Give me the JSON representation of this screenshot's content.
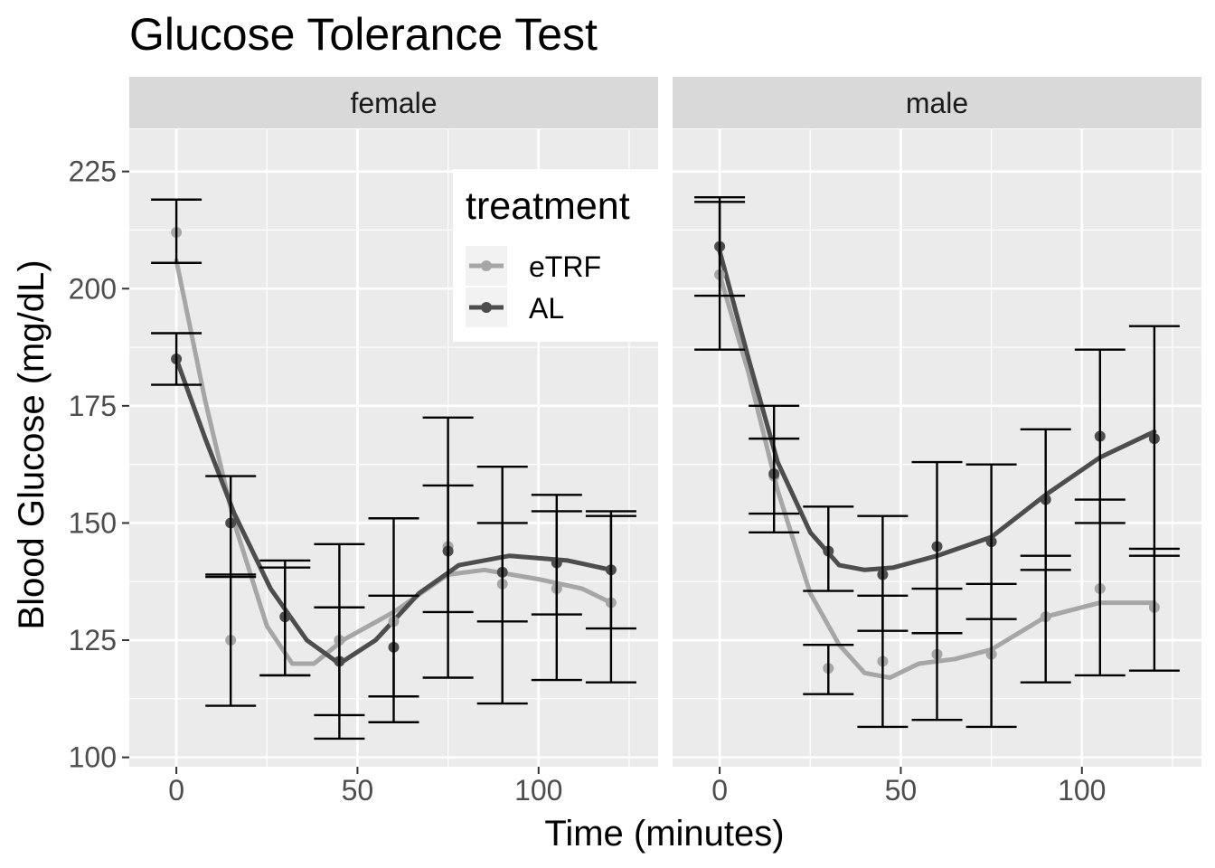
{
  "chart_data": {
    "type": "line",
    "title": "Glucose Tolerance Test",
    "xlabel": "Time (minutes)",
    "ylabel": "Blood Glucose (mg/dL)",
    "xlim": [
      -13,
      133
    ],
    "ylim": [
      98,
      234
    ],
    "x_ticks": [
      0,
      50,
      100
    ],
    "x_tick_labels": [
      "0",
      "50",
      "100"
    ],
    "y_ticks": [
      100,
      125,
      150,
      175,
      200,
      225
    ],
    "y_tick_labels": [
      "100",
      "125",
      "150",
      "175",
      "200",
      "225"
    ],
    "grid": true,
    "legend": {
      "title": "treatment",
      "placement": "inside top-right of female panel",
      "entries": [
        "eTRF",
        "AL"
      ]
    },
    "series_colors": {
      "eTRF": "#a6a6a6",
      "AL": "#4d4d4d"
    },
    "x": [
      0,
      15,
      30,
      45,
      60,
      75,
      90,
      105,
      120
    ],
    "facets": [
      {
        "label": "female",
        "series": [
          {
            "name": "eTRF",
            "values": [
              212,
              125,
              130,
              125,
              129,
              145,
              137,
              136,
              133
            ],
            "error_low": [
              205.5,
              111,
              117.5,
              104,
              107.5,
              117,
              111.5,
              116.5,
              116
            ],
            "error_high": [
              219,
              139,
              142,
              145.5,
              151,
              172.5,
              162,
              156,
              152.5
            ],
            "smooth": [
              [
                0,
                206
              ],
              [
                8,
                176
              ],
              [
                16,
                150
              ],
              [
                25,
                128
              ],
              [
                32,
                120
              ],
              [
                38,
                120
              ],
              [
                46,
                125
              ],
              [
                60,
                131
              ],
              [
                75,
                139
              ],
              [
                85,
                140
              ],
              [
                100,
                138
              ],
              [
                112,
                136
              ],
              [
                120,
                133
              ]
            ]
          },
          {
            "name": "AL",
            "values": [
              185,
              150,
              130,
              120.5,
              123.5,
              144,
              139.5,
              141.5,
              140
            ],
            "error_low": [
              179.5,
              138.5,
              117.5,
              109,
              113,
              131,
              129,
              130.5,
              127.5
            ],
            "error_high": [
              190.5,
              160,
              140.5,
              132,
              134.5,
              158,
              150,
              152.5,
              151.5
            ],
            "smooth": [
              [
                0,
                185
              ],
              [
                8,
                168
              ],
              [
                16,
                152
              ],
              [
                26,
                136
              ],
              [
                36,
                125
              ],
              [
                45,
                120
              ],
              [
                55,
                125
              ],
              [
                67,
                135
              ],
              [
                78,
                141
              ],
              [
                92,
                143
              ],
              [
                108,
                142
              ],
              [
                120,
                140
              ]
            ]
          }
        ]
      },
      {
        "label": "male",
        "series": [
          {
            "name": "eTRF",
            "values": [
              203,
              160,
              119,
              120.5,
              122,
              122,
              130,
              136,
              132
            ],
            "error_low": [
              187,
              148,
              113.5,
              106.5,
              108,
              106.5,
              116,
              117.5,
              118.5
            ],
            "error_high": [
              218.5,
              168,
              124,
              134.5,
              136,
              137,
              143,
              155,
              144.5
            ],
            "smooth": [
              [
                0,
                203
              ],
              [
                8,
                182
              ],
              [
                16,
                157
              ],
              [
                25,
                135
              ],
              [
                33,
                124
              ],
              [
                40,
                118
              ],
              [
                47,
                117
              ],
              [
                55,
                120
              ],
              [
                65,
                121
              ],
              [
                75,
                123
              ],
              [
                90,
                130
              ],
              [
                105,
                133
              ],
              [
                120,
                133
              ]
            ]
          },
          {
            "name": "AL",
            "values": [
              209,
              160.5,
              144,
              139,
              145,
              146,
              155,
              168.5,
              168
            ],
            "error_low": [
              198.5,
              152,
              135.5,
              127,
              126.5,
              129.5,
              140,
              150,
              143
            ],
            "error_high": [
              219.5,
              175,
              153.5,
              151.5,
              163,
              162.5,
              170,
              187,
              192
            ],
            "smooth": [
              [
                0,
                208
              ],
              [
                8,
                185
              ],
              [
                16,
                163
              ],
              [
                25,
                148
              ],
              [
                33,
                141
              ],
              [
                40,
                140
              ],
              [
                48,
                140.5
              ],
              [
                60,
                143
              ],
              [
                75,
                147
              ],
              [
                90,
                156
              ],
              [
                105,
                164
              ],
              [
                120,
                169.5
              ]
            ]
          }
        ]
      }
    ]
  }
}
